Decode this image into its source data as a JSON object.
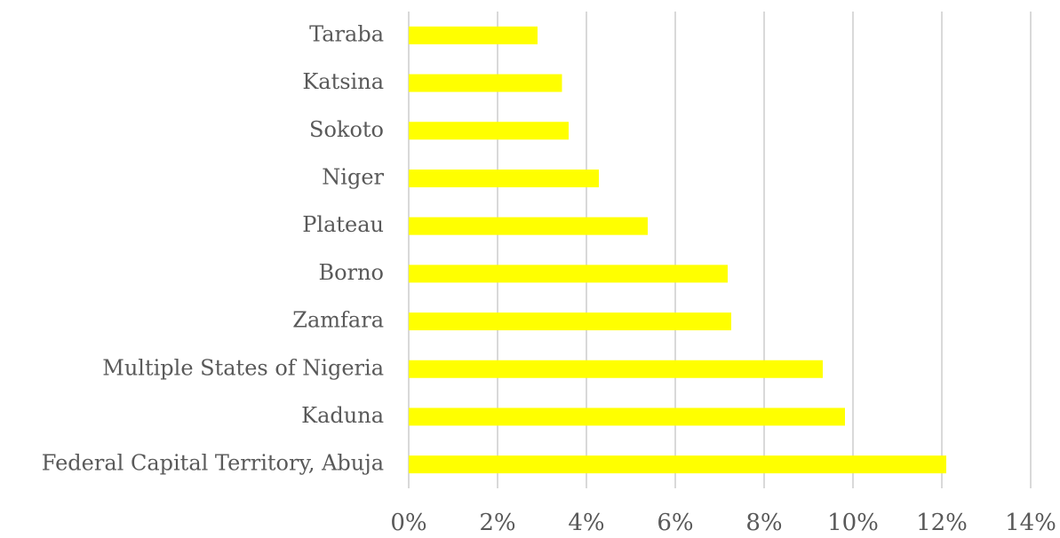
{
  "chart_data": {
    "type": "barh",
    "categories": [
      "Taraba",
      "Katsina",
      "Sokoto",
      "Niger",
      "Plateau",
      "Borno",
      "Zamfara",
      "Multiple States of Nigeria",
      "Kaduna",
      "Federal Capital Territory, Abuja"
    ],
    "values": [
      2.9,
      3.45,
      3.6,
      4.28,
      5.38,
      7.18,
      7.26,
      9.32,
      9.82,
      12.1
    ],
    "color": "#ffff00",
    "xlim": [
      0,
      14
    ],
    "xticks": [
      {
        "value": 0,
        "label": "0%"
      },
      {
        "value": 2,
        "label": "2%"
      },
      {
        "value": 4,
        "label": "4%"
      },
      {
        "value": 6,
        "label": "6%"
      },
      {
        "value": 8,
        "label": "8%"
      },
      {
        "value": 10,
        "label": "10%"
      },
      {
        "value": 12,
        "label": "12%"
      },
      {
        "value": 14,
        "label": "14%"
      }
    ],
    "grid": true
  }
}
